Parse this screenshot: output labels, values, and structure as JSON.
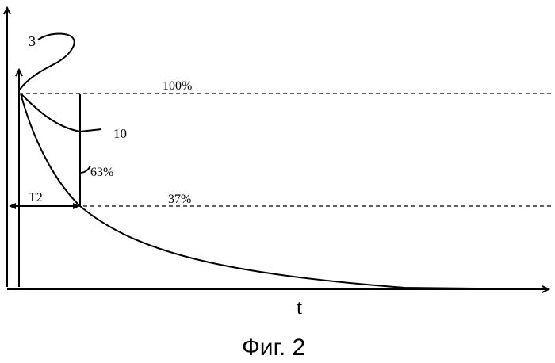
{
  "labels": {
    "curve_number": "3",
    "tangent_number": "10",
    "level_100": "100%",
    "level_37": "37%",
    "delta_63": "63%",
    "time_constant": "T2",
    "x_axis": "t"
  },
  "caption": "Фиг. 2"
}
